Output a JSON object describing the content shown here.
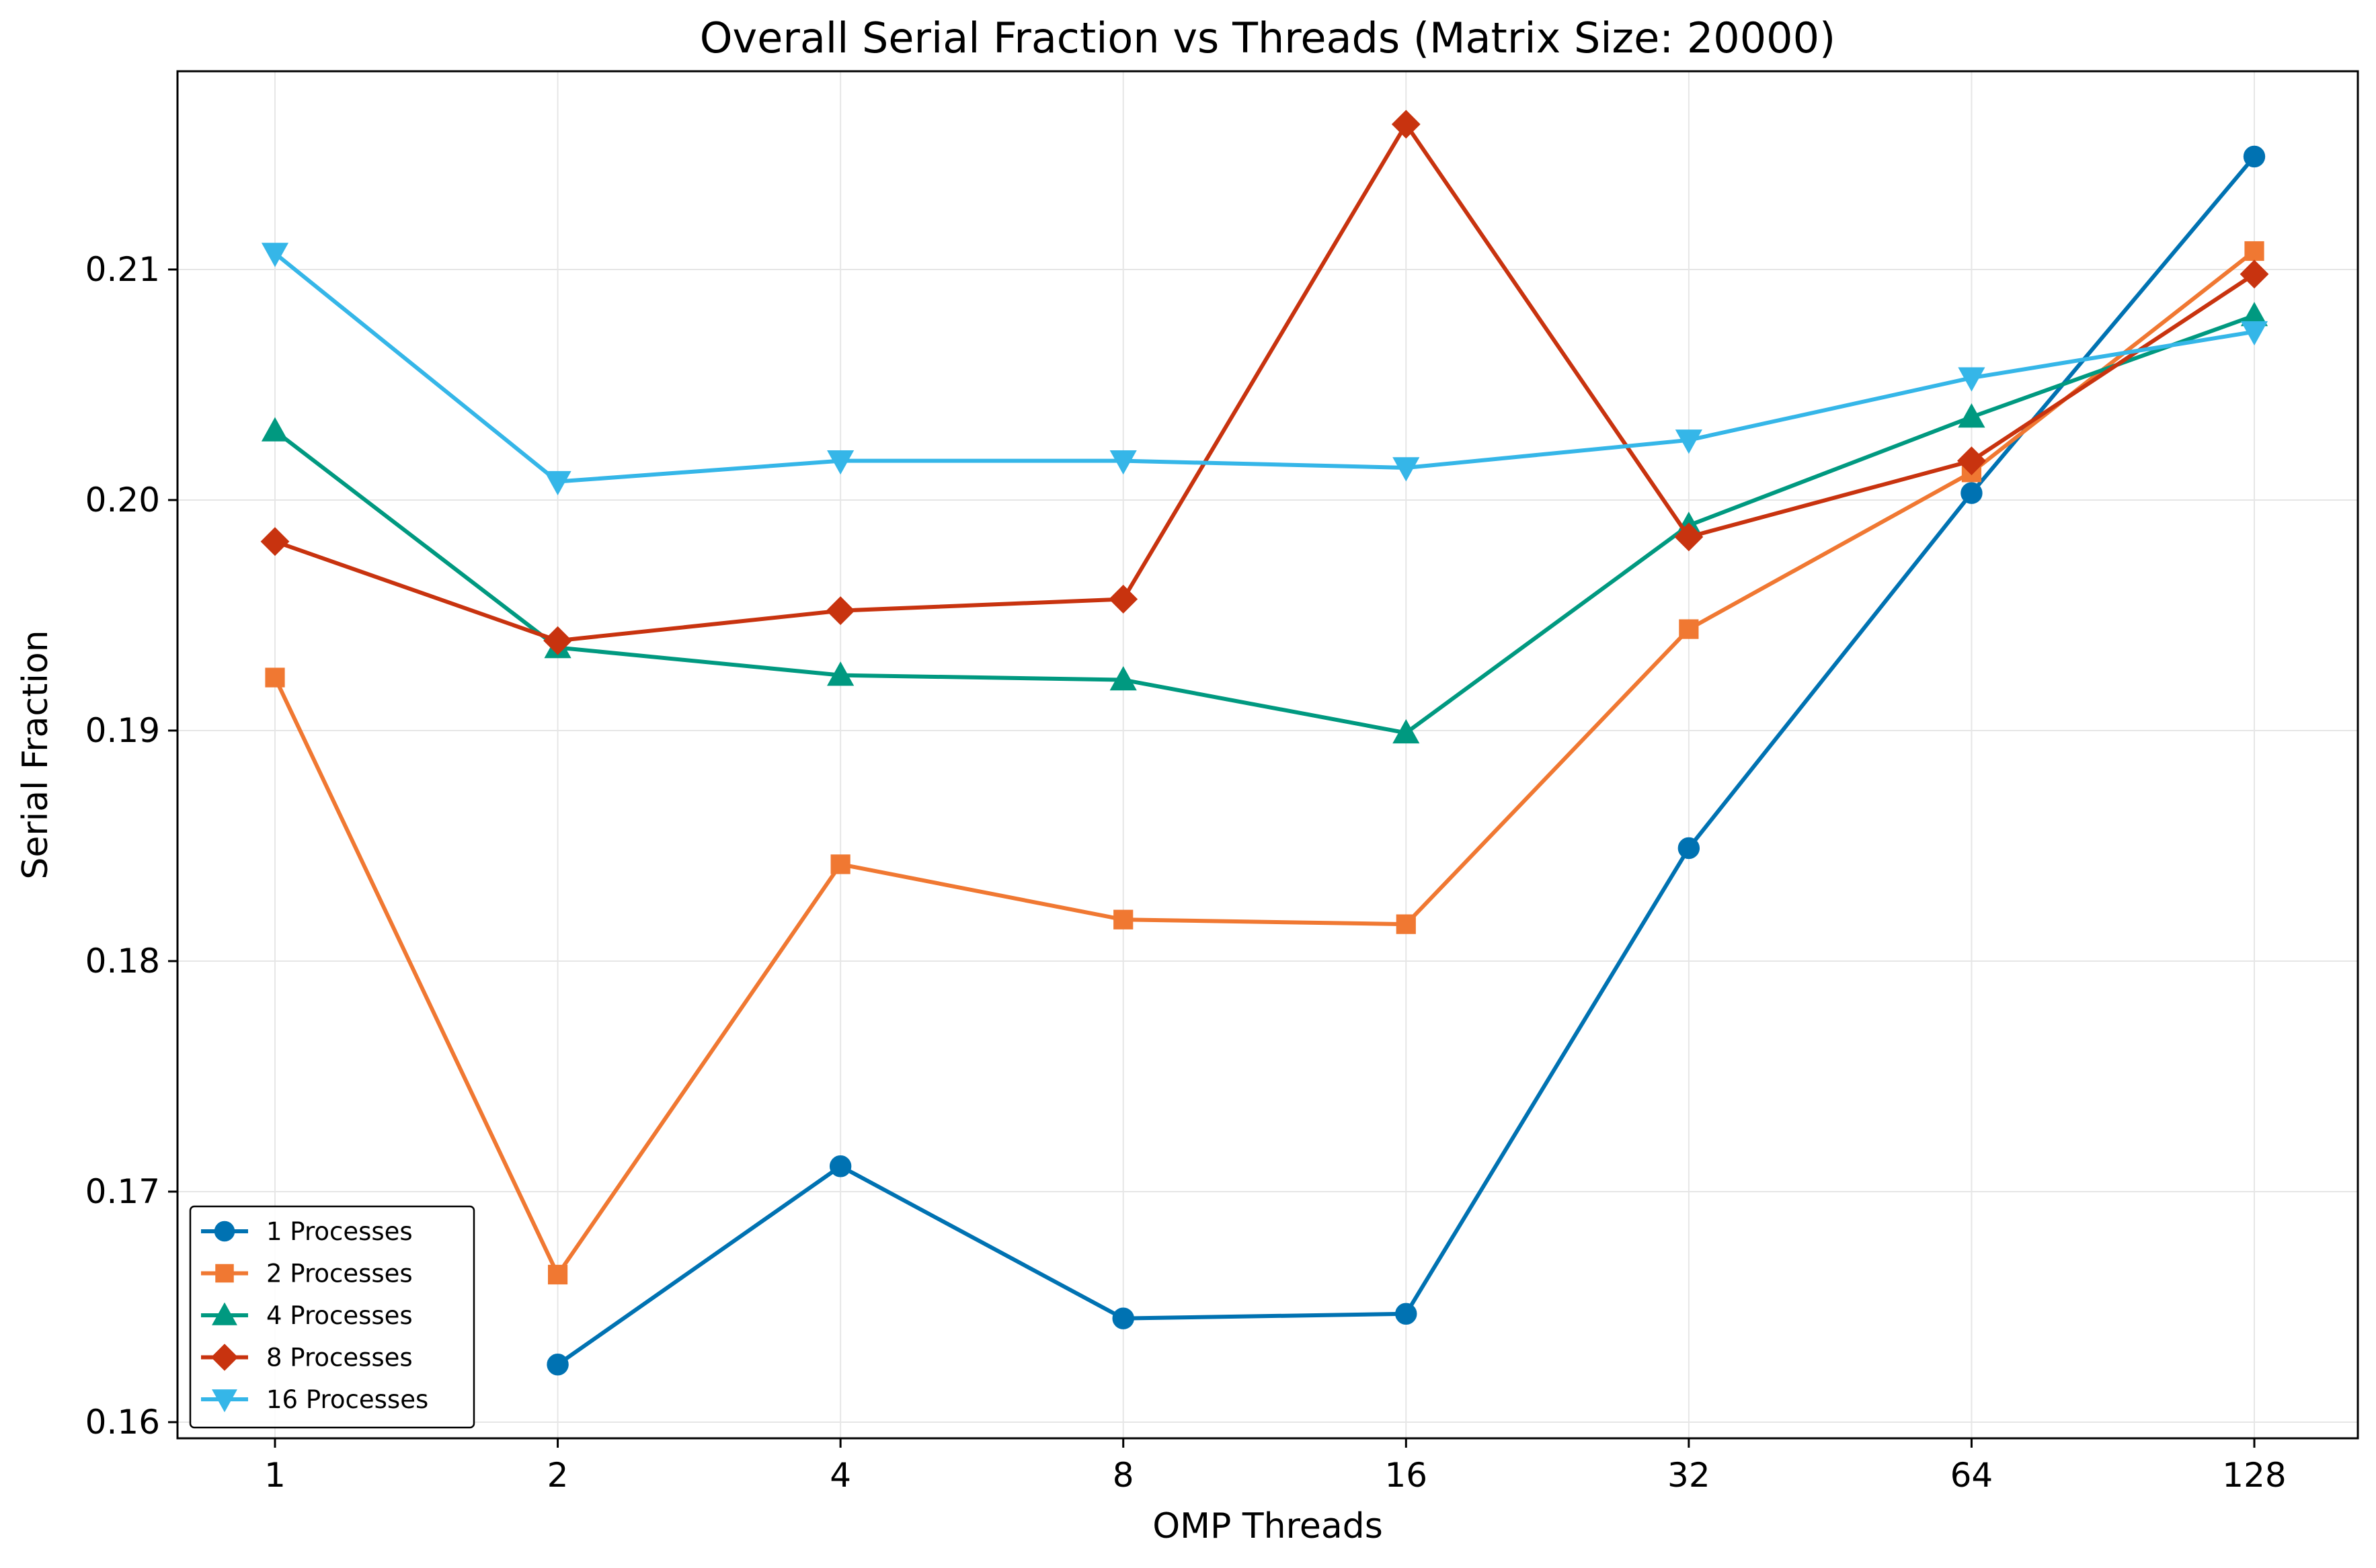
{
  "chart_data": {
    "type": "line",
    "title": "Overall Serial Fraction vs Threads (Matrix Size: 20000)",
    "xlabel": "OMP Threads",
    "ylabel": "Serial Fraction",
    "x_scale": "log2",
    "categories": [
      "1",
      "2",
      "4",
      "8",
      "16",
      "32",
      "64",
      "128"
    ],
    "x": [
      1,
      2,
      4,
      8,
      16,
      32,
      64,
      128
    ],
    "ylim": [
      0.1593,
      0.2186
    ],
    "yticks": [
      "0.16",
      "0.17",
      "0.18",
      "0.19",
      "0.20",
      "0.21"
    ],
    "grid": true,
    "legend_position": "lower-left",
    "series": [
      {
        "name": "1 Processes",
        "color": "#0072B2",
        "marker": "circle",
        "values": [
          null,
          0.1625,
          0.1711,
          0.1645,
          0.1647,
          0.1849,
          0.2003,
          0.2149
        ]
      },
      {
        "name": "2 Processes",
        "color": "#F07832",
        "marker": "square",
        "values": [
          0.1923,
          0.1664,
          0.1842,
          0.1818,
          0.1816,
          0.1944,
          0.2012,
          0.2108
        ]
      },
      {
        "name": "4 Processes",
        "color": "#009980",
        "marker": "triangle-up",
        "values": [
          0.203,
          0.1936,
          0.1924,
          0.1922,
          0.1899,
          0.1989,
          0.2036,
          0.208
        ]
      },
      {
        "name": "8 Processes",
        "color": "#C8330F",
        "marker": "diamond",
        "values": [
          0.1982,
          0.1939,
          0.1952,
          0.1957,
          0.2163,
          0.1984,
          0.2017,
          0.2098
        ]
      },
      {
        "name": "16 Processes",
        "color": "#35B6E8",
        "marker": "triangle-down",
        "values": [
          0.2107,
          0.2008,
          0.2017,
          0.2017,
          0.2014,
          0.2026,
          0.2053,
          0.2073
        ]
      }
    ]
  }
}
